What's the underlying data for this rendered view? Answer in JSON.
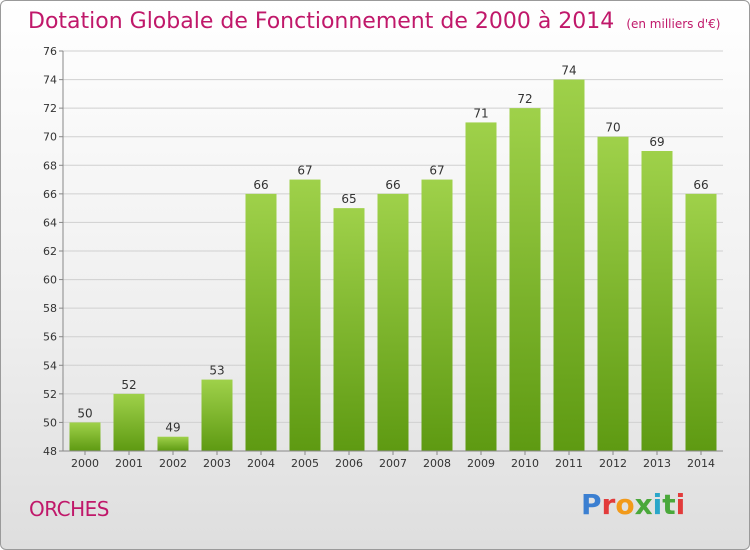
{
  "chart_data": {
    "type": "bar",
    "title": "Dotation Globale de Fonctionnement de 2000 à 2014",
    "subtitle": "(en milliers d'€)",
    "categories": [
      "2000",
      "2001",
      "2002",
      "2003",
      "2004",
      "2005",
      "2006",
      "2007",
      "2008",
      "2009",
      "2010",
      "2011",
      "2012",
      "2013",
      "2014"
    ],
    "values": [
      50,
      52,
      49,
      53,
      66,
      67,
      65,
      66,
      67,
      71,
      72,
      74,
      70,
      69,
      66
    ],
    "ylim": [
      48,
      76
    ],
    "yticks": [
      48,
      50,
      52,
      54,
      56,
      58,
      60,
      62,
      64,
      66,
      68,
      70,
      72,
      74,
      76
    ],
    "grid": true,
    "colors": {
      "bar_top": "#9fd14a",
      "bar_bottom": "#5e9a12",
      "grid": "#d0d0d0",
      "text": "#333333",
      "title": "#c0186a"
    }
  },
  "footer": {
    "town": "ORCHES",
    "logo": "Proxiti"
  }
}
